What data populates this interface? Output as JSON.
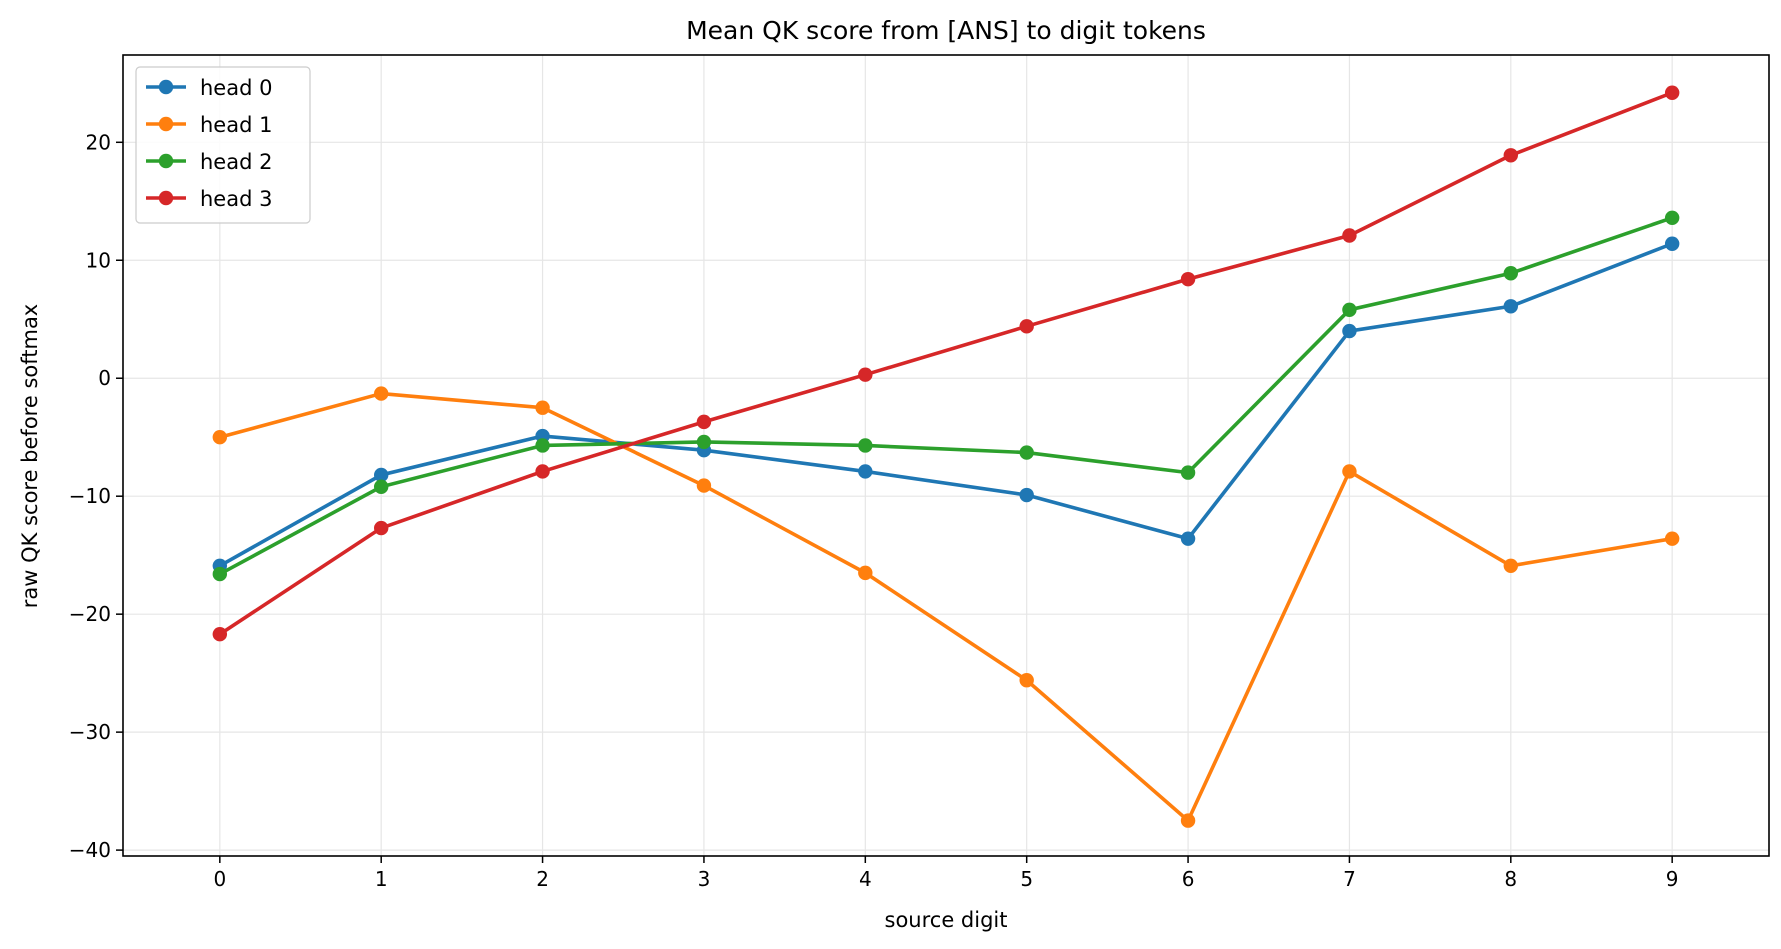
{
  "chart_data": {
    "type": "line",
    "title": "Mean QK score from [ANS] to digit tokens",
    "xlabel": "source digit",
    "ylabel": "raw QK score before softmax",
    "x": [
      0,
      1,
      2,
      3,
      4,
      5,
      6,
      7,
      8,
      9
    ],
    "xticks": [
      "0",
      "1",
      "2",
      "3",
      "4",
      "5",
      "6",
      "7",
      "8",
      "9"
    ],
    "xlim": [
      -0.6,
      9.6
    ],
    "ylim": [
      -40.5,
      27.4
    ],
    "yticks": [
      20,
      10,
      0,
      -10,
      -20,
      -30,
      -40
    ],
    "ytick_labels": [
      "20",
      "10",
      "0",
      "−10",
      "−20",
      "−30",
      "−40"
    ],
    "grid": true,
    "legend_position": "upper-left",
    "series": [
      {
        "name": "head 0",
        "color": "#1f77b4",
        "values": [
          -15.9,
          -8.2,
          -4.9,
          -6.1,
          -7.9,
          -9.9,
          -13.6,
          4.0,
          6.1,
          11.4
        ]
      },
      {
        "name": "head 1",
        "color": "#ff7f0e",
        "values": [
          -5.0,
          -1.3,
          -2.5,
          -9.1,
          -16.5,
          -25.6,
          -37.5,
          -7.9,
          -15.9,
          -13.6
        ]
      },
      {
        "name": "head 2",
        "color": "#2ca02c",
        "values": [
          -16.6,
          -9.2,
          -5.7,
          -5.4,
          -5.7,
          -6.3,
          -8.0,
          5.8,
          8.9,
          13.6
        ]
      },
      {
        "name": "head 3",
        "color": "#d62728",
        "values": [
          -21.7,
          -12.7,
          -7.9,
          -3.7,
          0.3,
          4.4,
          8.4,
          12.1,
          18.9,
          24.2
        ]
      }
    ]
  }
}
